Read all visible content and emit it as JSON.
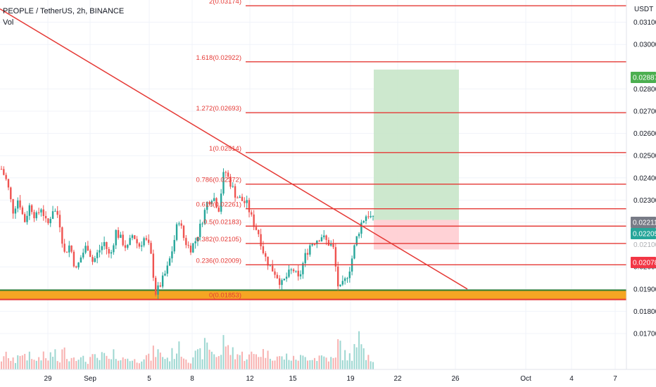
{
  "header": {
    "symbol_title": "PEOPLE / TetherUS, 2h, BINANCE",
    "vol_label": "Vol"
  },
  "axis": {
    "currency": "USDT",
    "price_ticks": [
      "0.03100",
      "0.03000",
      "0.02800",
      "0.02700",
      "0.02600",
      "0.02500",
      "0.02400",
      "0.02300",
      "0.02200",
      "0.02000",
      "0.01900",
      "0.01800",
      "0.01700"
    ],
    "hidden_tick": "0.02100",
    "time_ticks": [
      "29",
      "Sep",
      "5",
      "8",
      "12",
      "15",
      "19",
      "22",
      "26",
      "Oct",
      "4",
      "7"
    ]
  },
  "price_badges": [
    {
      "label": "0.02887",
      "color": "#4caf50"
    },
    {
      "label": "0.02211",
      "color": "#787b86"
    },
    {
      "label": "0.02205",
      "color": "#26a69a"
    },
    {
      "label": "0.02078",
      "color": "#f23645"
    }
  ],
  "fib_levels": [
    {
      "label": "2(0.03174)",
      "price": 0.03174
    },
    {
      "label": "1.618(0.02922)",
      "price": 0.02922
    },
    {
      "label": "1.272(0.02693)",
      "price": 0.02693
    },
    {
      "label": "1(0.02514)",
      "price": 0.02514
    },
    {
      "label": "0.786(0.02372)",
      "price": 0.02372
    },
    {
      "label": "0.618(0.02261)",
      "price": 0.02261
    },
    {
      "label": "0.5(0.02183)",
      "price": 0.02183
    },
    {
      "label": "0.382(0.02105)",
      "price": 0.02105
    },
    {
      "label": "0.236(0.02009)",
      "price": 0.02009
    },
    {
      "label": "0(0.01853)",
      "price": 0.01853
    }
  ],
  "position": {
    "entry": 0.02211,
    "target": 0.02887,
    "stop": 0.02078
  },
  "support_zone": {
    "top": 0.01895,
    "bottom": 0.01853,
    "fill_color": "#f5a623"
  },
  "colors": {
    "up": "#26a69a",
    "down": "#ef5350",
    "fib": "#e53935",
    "trendline": "#e53935",
    "profit_zone": "#c8e6c9",
    "loss_zone": "#ffcdd2"
  },
  "chart_data": {
    "type": "candlestick",
    "title": "PEOPLE / TetherUS, 2h, BINANCE",
    "ylabel": "USDT",
    "ylim": [
      0.0163,
      0.032
    ],
    "x_tick_labels": [
      "29",
      "Sep",
      "5",
      "8",
      "12",
      "15",
      "19",
      "22",
      "26",
      "Oct",
      "4",
      "7"
    ],
    "trendline": {
      "start_price": 0.0316,
      "end_price": 0.019
    },
    "price_path": [
      0.0244,
      0.0238,
      0.0225,
      0.0231,
      0.022,
      0.0228,
      0.0222,
      0.0227,
      0.0218,
      0.0226,
      0.0223,
      0.0206,
      0.021,
      0.0198,
      0.0205,
      0.021,
      0.0202,
      0.0207,
      0.0211,
      0.0204,
      0.0216,
      0.0212,
      0.0208,
      0.0215,
      0.0209,
      0.0213,
      0.0208,
      0.0188,
      0.0193,
      0.0199,
      0.0209,
      0.0222,
      0.0212,
      0.0208,
      0.0212,
      0.022,
      0.0229,
      0.0232,
      0.0226,
      0.0244,
      0.0238,
      0.0232,
      0.023,
      0.0228,
      0.022,
      0.0215,
      0.0205,
      0.02,
      0.0197,
      0.0192,
      0.0196,
      0.0199,
      0.0194,
      0.0204,
      0.021,
      0.0212,
      0.0214,
      0.0211,
      0.0209,
      0.0189,
      0.0193,
      0.02,
      0.0212,
      0.022,
      0.0224,
      0.0221
    ],
    "volume_path": [
      0.35,
      0.5,
      0.3,
      0.6,
      0.4,
      0.55,
      0.3,
      0.45,
      0.35,
      0.5,
      0.3,
      0.6,
      0.4,
      0.5,
      0.35,
      0.3,
      0.4,
      0.35,
      0.45,
      0.3,
      0.5,
      0.35,
      0.4,
      0.3,
      0.35,
      0.45,
      0.4,
      0.6,
      0.5,
      0.4,
      0.55,
      0.7,
      0.45,
      0.35,
      0.5,
      0.55,
      0.8,
      0.6,
      0.5,
      1.0,
      0.65,
      0.55,
      0.5,
      0.45,
      0.5,
      0.55,
      0.6,
      0.5,
      0.45,
      0.4,
      0.45,
      0.35,
      0.4,
      0.4,
      0.45,
      0.4,
      0.45,
      0.4,
      0.35,
      0.9,
      0.5,
      0.45,
      0.7,
      1.0,
      0.55,
      0.4
    ]
  }
}
